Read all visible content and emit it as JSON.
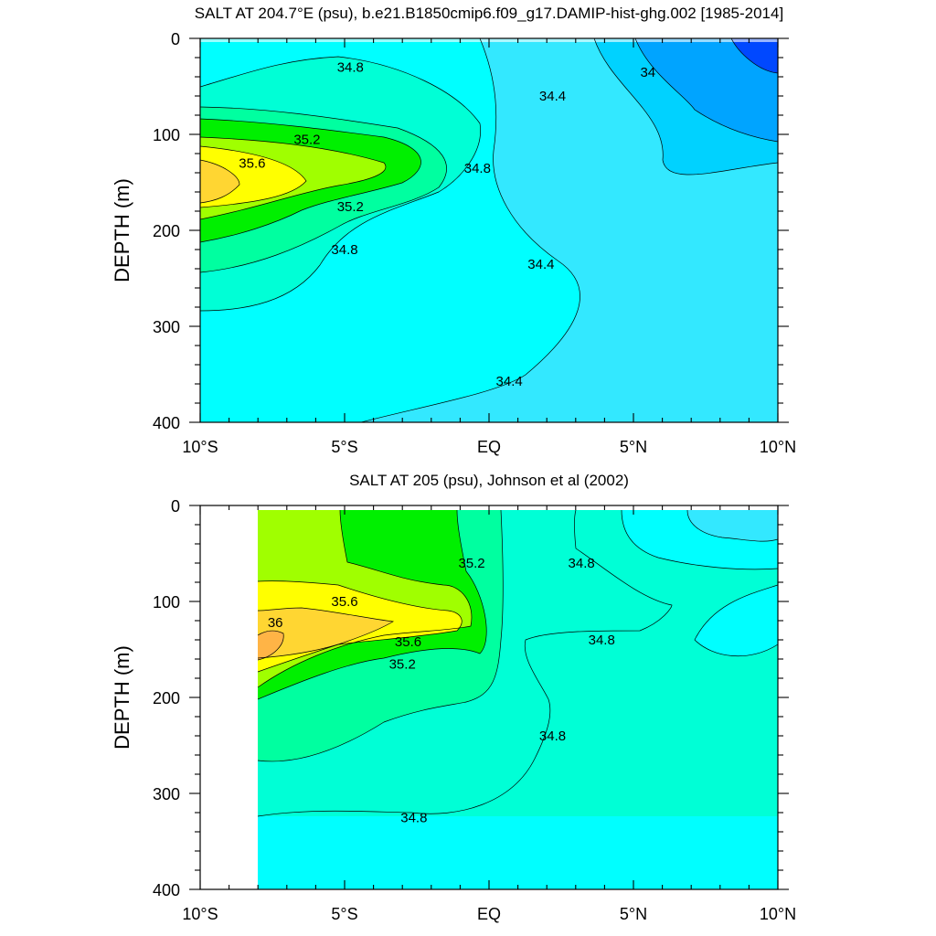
{
  "colors": {
    "34.0": "#0048ff",
    "34.2": "#00a4ff",
    "34.3": "#00d2ff",
    "34.4": "#33e8ff",
    "34.6": "#00ffff",
    "34.8": "#00ffd6",
    "35.0": "#00ffa0",
    "35.2": "#00f000",
    "35.4": "#a0ff00",
    "35.6": "#ffff00",
    "35.8": "#ffd632",
    "36.0": "#ffb446"
  },
  "chart_data": [
    {
      "type": "contour",
      "title": "SALT AT 204.7°E (psu), b.e21.B1850cmip6.f09_g17.DAMIP-hist-ghg.002 [1985-2014]",
      "xlabel": "",
      "ylabel": "DEPTH (m)",
      "xlim": [
        -10,
        10
      ],
      "ylim": [
        400,
        0
      ],
      "x_ticks": [
        {
          "value": -10,
          "label": "10°S"
        },
        {
          "value": -5,
          "label": "5°S"
        },
        {
          "value": 0,
          "label": "EQ"
        },
        {
          "value": 5,
          "label": "5°N"
        },
        {
          "value": 10,
          "label": "10°N"
        }
      ],
      "y_ticks": [
        {
          "value": 0,
          "label": "0"
        },
        {
          "value": 100,
          "label": "100"
        },
        {
          "value": 200,
          "label": "200"
        },
        {
          "value": 300,
          "label": "300"
        },
        {
          "value": 400,
          "label": "400"
        }
      ],
      "contour_labels": [
        {
          "text": "34.8",
          "x": -4.8,
          "y": 30
        },
        {
          "text": "35.2",
          "x": -6.3,
          "y": 105
        },
        {
          "text": "35.6",
          "x": -8.2,
          "y": 130
        },
        {
          "text": "35.2",
          "x": -4.8,
          "y": 175
        },
        {
          "text": "34.8",
          "x": -5.0,
          "y": 220
        },
        {
          "text": "34.8",
          "x": -0.4,
          "y": 135
        },
        {
          "text": "34.4",
          "x": 2.2,
          "y": 60
        },
        {
          "text": "34",
          "x": 5.5,
          "y": 35
        },
        {
          "text": "34.4",
          "x": 1.8,
          "y": 235
        },
        {
          "text": "34.4",
          "x": 0.7,
          "y": 357
        }
      ]
    },
    {
      "type": "contour",
      "title": "SALT AT 205 (psu), Johnson et al (2002)",
      "xlabel": "",
      "ylabel": "DEPTH (m)",
      "xlim": [
        -10,
        10
      ],
      "ylim": [
        400,
        0
      ],
      "data_xlim": [
        -8,
        10
      ],
      "x_ticks": [
        {
          "value": -10,
          "label": "10°S"
        },
        {
          "value": -5,
          "label": "5°S"
        },
        {
          "value": 0,
          "label": "EQ"
        },
        {
          "value": 5,
          "label": "5°N"
        },
        {
          "value": 10,
          "label": "10°N"
        }
      ],
      "y_ticks": [
        {
          "value": 0,
          "label": "0"
        },
        {
          "value": 100,
          "label": "100"
        },
        {
          "value": 200,
          "label": "200"
        },
        {
          "value": 300,
          "label": "300"
        },
        {
          "value": 400,
          "label": "400"
        }
      ],
      "contour_labels": [
        {
          "text": "35.2",
          "x": -0.6,
          "y": 60
        },
        {
          "text": "34.8",
          "x": 3.2,
          "y": 60
        },
        {
          "text": "35.6",
          "x": -5.0,
          "y": 100
        },
        {
          "text": "36",
          "x": -7.4,
          "y": 122
        },
        {
          "text": "35.6",
          "x": -2.8,
          "y": 142
        },
        {
          "text": "35.2",
          "x": -3.0,
          "y": 165
        },
        {
          "text": "34.8",
          "x": 3.9,
          "y": 140
        },
        {
          "text": "34.8",
          "x": 2.2,
          "y": 240
        },
        {
          "text": "34.8",
          "x": -2.6,
          "y": 325
        }
      ]
    }
  ]
}
